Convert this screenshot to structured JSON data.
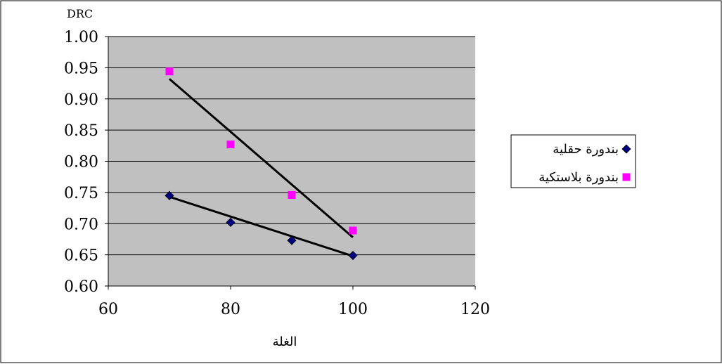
{
  "chart_data": {
    "type": "scatter",
    "xlabel": "الغلة",
    "ylabel": "DRC",
    "xlim": [
      60,
      120
    ],
    "ylim": [
      0.6,
      1.0
    ],
    "xticks": [
      "60",
      "80",
      "100",
      "120"
    ],
    "yticks": [
      "0.60",
      "0.65",
      "0.70",
      "0.75",
      "0.80",
      "0.85",
      "0.90",
      "0.95",
      "1.00"
    ],
    "grid": "horizontal",
    "legend_position": "right",
    "plot_background": "#c0c0c0",
    "series": [
      {
        "name": "بندورة حقلية",
        "marker": "diamond",
        "color": "#000080",
        "x": [
          70,
          80,
          90,
          100
        ],
        "y": [
          0.745,
          0.702,
          0.673,
          0.649
        ],
        "trendline": {
          "x": [
            70,
            100
          ],
          "y": [
            0.743,
            0.648
          ]
        }
      },
      {
        "name": "بندورة بلاستكية",
        "marker": "square",
        "color": "#ff00ff",
        "x": [
          70,
          80,
          90,
          100
        ],
        "y": [
          0.944,
          0.827,
          0.746,
          0.689
        ],
        "trendline": {
          "x": [
            70,
            100
          ],
          "y": [
            0.932,
            0.678
          ]
        }
      }
    ]
  }
}
